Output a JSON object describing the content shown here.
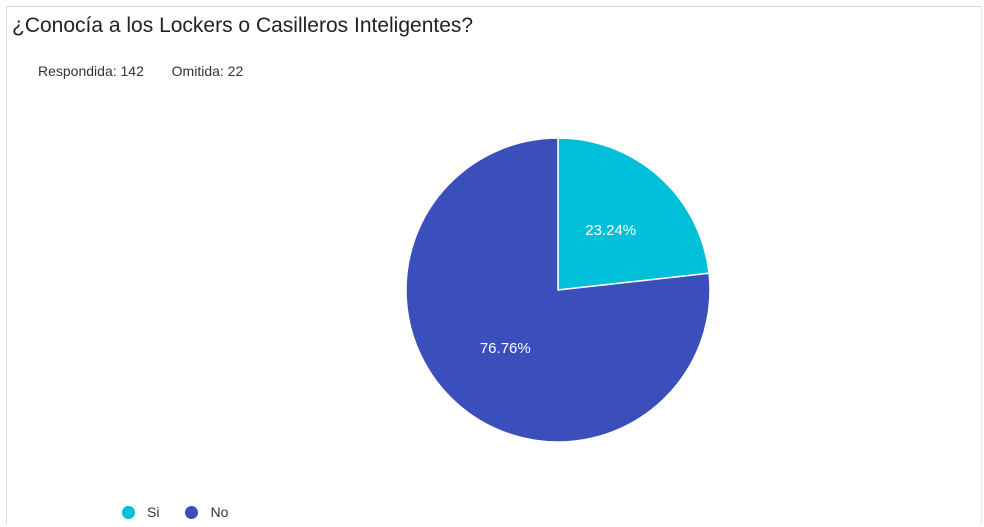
{
  "chart_data": {
    "type": "pie",
    "title": "¿Conocía a los Lockers o Casilleros Inteligentes?",
    "summary": {
      "answered_label": "Respondida:",
      "answered": 142,
      "skipped_label": "Omitida:",
      "skipped": 22
    },
    "slices": [
      {
        "label": "Si",
        "value": 23.24,
        "display": "23.24%",
        "color": "#00c0d9"
      },
      {
        "label": "No",
        "value": 76.76,
        "display": "76.76%",
        "color": "#3a4fbc"
      }
    ],
    "legend_position": "bottom-left"
  }
}
